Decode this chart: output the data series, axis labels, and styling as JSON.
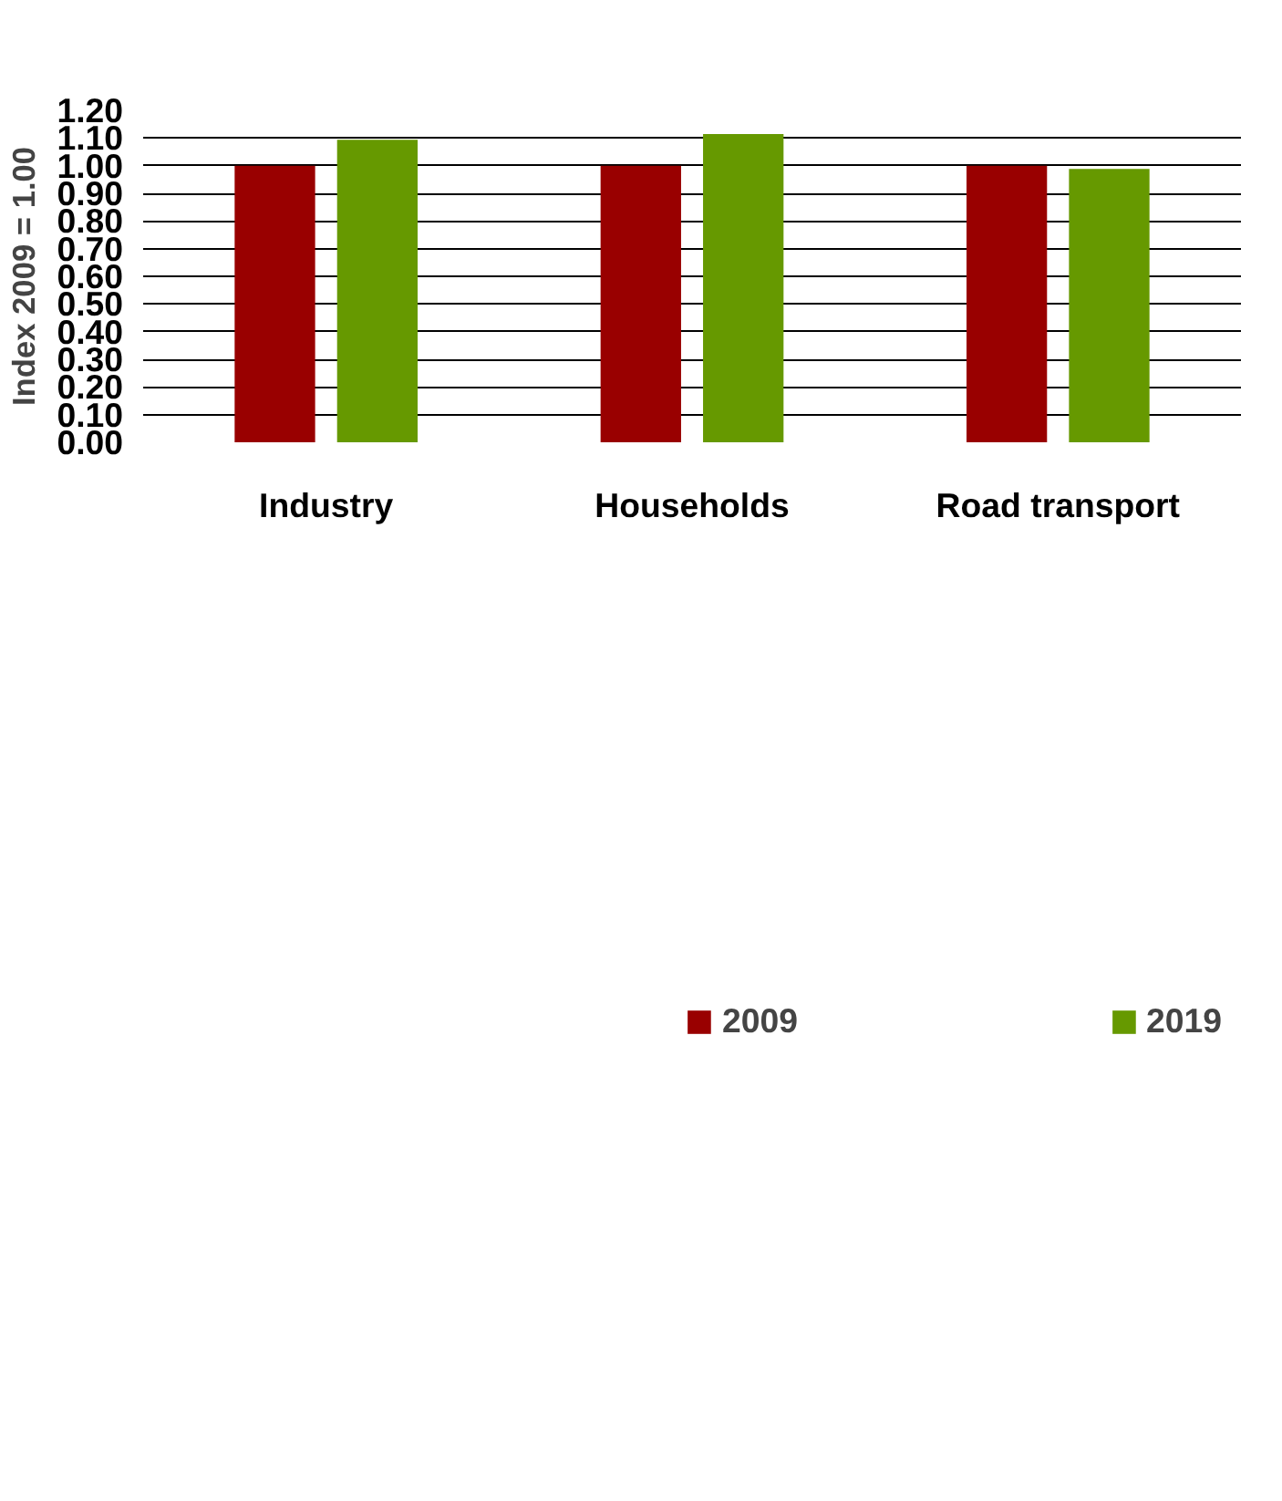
{
  "chart_data": {
    "type": "bar",
    "ylabel": "Index 2009 = 1.00",
    "categories": [
      "Industry",
      "Households",
      "Road transport"
    ],
    "series": [
      {
        "name": "2009",
        "color": "#990000",
        "values": [
          1.0,
          1.0,
          1.0
        ]
      },
      {
        "name": "2019",
        "color": "#669900",
        "values": [
          1.094,
          1.114,
          0.988
        ]
      }
    ],
    "ylim": [
      0,
      1.2
    ],
    "yticks": [
      {
        "value": 0,
        "label": "0.00"
      },
      {
        "value": 0.1,
        "label": "0.10"
      },
      {
        "value": 0.2,
        "label": "0.20"
      },
      {
        "value": 0.3,
        "label": "0.30"
      },
      {
        "value": 0.4,
        "label": "0.40"
      },
      {
        "value": 0.5,
        "label": "0.50"
      },
      {
        "value": 0.6,
        "label": "0.60"
      },
      {
        "value": 0.7,
        "label": "0.70"
      },
      {
        "value": 0.8,
        "label": "0.80"
      },
      {
        "value": 0.9,
        "label": "0.90"
      },
      {
        "value": 1.0,
        "label": "1.00"
      },
      {
        "value": 1.1,
        "label": "1.10"
      },
      {
        "value": 1.2,
        "label": "1.20"
      }
    ],
    "grid": "y",
    "legend": "bottom"
  }
}
